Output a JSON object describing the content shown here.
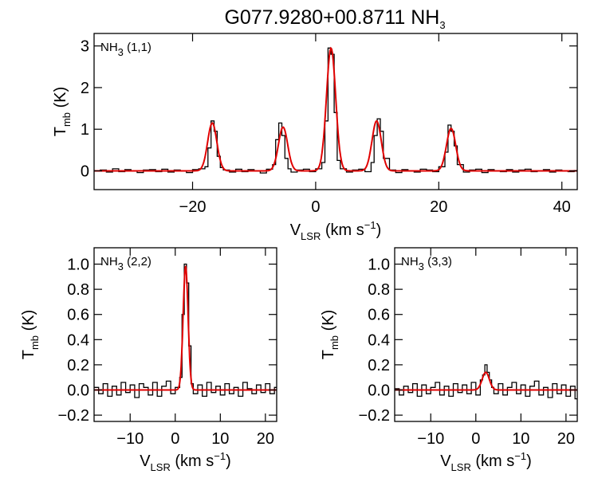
{
  "figure": {
    "title_main": "G077.9280+00.8711 NH",
    "title_sub": "3",
    "colors": {
      "data": "#000000",
      "fit": "#e00000",
      "frame": "#000000"
    }
  },
  "chart_data": [
    {
      "type": "line",
      "panel_label": {
        "main": "NH",
        "sub": "3",
        "rest": " (1,1)"
      },
      "xlabel": {
        "main": "V",
        "sub": "LSR",
        "rest": " (km s",
        "sup": "−1",
        "end": ")"
      },
      "ylabel": {
        "main": "T",
        "sub": "mb",
        "rest": " (K)"
      },
      "xlim": [
        -36,
        42.5
      ],
      "ylim": [
        -0.45,
        3.3
      ],
      "xticks": [
        -20,
        0,
        20,
        40
      ],
      "xticklabels": [
        "−20",
        "0",
        "20",
        "40"
      ],
      "yticks": [
        0,
        1,
        2,
        3
      ],
      "yticklabels": [
        "0",
        "1",
        "2",
        "3"
      ],
      "grid": false,
      "series": [
        {
          "style": "histogram",
          "color": "#000000",
          "x": [
            -36,
            -35,
            -34,
            -33,
            -32,
            -31,
            -30,
            -29,
            -28,
            -27,
            -26,
            -25,
            -24,
            -23,
            -22,
            -21,
            -20,
            -19,
            -18,
            -17.5,
            -17,
            -16.5,
            -16,
            -15.5,
            -15,
            -14,
            -13,
            -12,
            -11,
            -10,
            -9,
            -8,
            -7,
            -6.5,
            -6,
            -5.5,
            -5,
            -4.5,
            -4,
            -3,
            -2,
            -1,
            0,
            1,
            1.5,
            2,
            2.5,
            3,
            3.5,
            4,
            5,
            6,
            7,
            8,
            9,
            9.5,
            10,
            10.5,
            11,
            12,
            13,
            14,
            15,
            16,
            17,
            18,
            19,
            20,
            21,
            21.5,
            22,
            22.5,
            23,
            24,
            25,
            26,
            27,
            28,
            29,
            30,
            31,
            32,
            33,
            34,
            35,
            36,
            37,
            38,
            39,
            40,
            41,
            42
          ],
          "y": [
            0,
            0.02,
            -0.03,
            0.05,
            -0.02,
            0.03,
            0,
            -0.04,
            0.02,
            0.03,
            -0.02,
            0.04,
            -0.03,
            0.02,
            0,
            -0.04,
            0.03,
            0.05,
            0.1,
            0.55,
            1.2,
            0.95,
            0.35,
            0.08,
            0.02,
            -0.03,
            0.04,
            -0.02,
            0.03,
            0,
            -0.05,
            0.04,
            0.15,
            0.75,
            1.15,
            0.85,
            0.3,
            0.05,
            -0.03,
            0.02,
            0.04,
            -0.02,
            0.05,
            0.2,
            1.2,
            2.95,
            2.8,
            1.4,
            0.25,
            0.05,
            -0.03,
            0.02,
            0.04,
            -0.02,
            0.2,
            0.85,
            1.25,
            0.95,
            0.3,
            0.02,
            -0.04,
            0.03,
            0,
            -0.03,
            0.04,
            0.02,
            -0.02,
            0.1,
            0.45,
            1.1,
            0.95,
            0.6,
            0.15,
            -0.03,
            0.02,
            0.04,
            -0.04,
            0.03,
            0,
            -0.02,
            0.03,
            -0.03,
            0.02,
            0.04,
            -0.02,
            0,
            0.03,
            -0.03,
            0.02,
            0,
            -0.02,
            0.01
          ]
        },
        {
          "style": "line",
          "color": "#e00000",
          "name": "",
          "peaks": [
            [
              -16.8,
              1.15,
              0.75
            ],
            [
              -5.3,
              1.05,
              0.75
            ],
            [
              2.5,
              2.95,
              0.75
            ],
            [
              9.9,
              1.2,
              0.75
            ],
            [
              22.0,
              1.02,
              0.75
            ]
          ]
        }
      ]
    },
    {
      "type": "line",
      "panel_label": {
        "main": "NH",
        "sub": "3",
        "rest": " (2,2)"
      },
      "xlabel": {
        "main": "V",
        "sub": "LSR",
        "rest": " (km s",
        "sup": "−1",
        "end": ")"
      },
      "ylabel": {
        "main": "T",
        "sub": "mb",
        "rest": " (K)"
      },
      "xlim": [
        -18,
        22.5
      ],
      "ylim": [
        -0.25,
        1.13
      ],
      "xticks": [
        -10,
        0,
        10,
        20
      ],
      "xticklabels": [
        "−10",
        "0",
        "10",
        "20"
      ],
      "yticks": [
        -0.2,
        0,
        0.2,
        0.4,
        0.6,
        0.8,
        1.0
      ],
      "yticklabels": [
        "−0.2",
        "0.0",
        "0.2",
        "0.4",
        "0.6",
        "0.8",
        "1.0"
      ],
      "grid": false,
      "series": [
        {
          "style": "histogram",
          "color": "#000000",
          "x": [
            -18,
            -17,
            -16,
            -15,
            -14,
            -13,
            -12,
            -11,
            -10,
            -9,
            -8,
            -7,
            -6,
            -5,
            -4,
            -3,
            -2,
            -1,
            0,
            1,
            1.5,
            2,
            2.5,
            3,
            3.5,
            4,
            5,
            6,
            7,
            8,
            9,
            10,
            11,
            12,
            13,
            14,
            15,
            16,
            17,
            18,
            19,
            20,
            21,
            22
          ],
          "y": [
            0.02,
            -0.03,
            0.05,
            -0.05,
            0.03,
            -0.04,
            0.06,
            -0.02,
            0.04,
            -0.06,
            0.05,
            0.02,
            -0.04,
            0.06,
            -0.05,
            0.03,
            0.07,
            -0.03,
            0.02,
            0.1,
            0.6,
            1.0,
            0.85,
            0.35,
            0.05,
            -0.03,
            0.04,
            -0.05,
            0.06,
            -0.02,
            0.03,
            -0.04,
            0.05,
            -0.03,
            0.02,
            -0.05,
            0.06,
            0.01,
            -0.03,
            0.04,
            -0.02,
            0.05,
            -0.03,
            0.02
          ]
        },
        {
          "style": "line",
          "color": "#e00000",
          "name": "",
          "peaks": [
            [
              2.3,
              0.98,
              0.55
            ]
          ]
        }
      ]
    },
    {
      "type": "line",
      "panel_label": {
        "main": "NH",
        "sub": "3",
        "rest": " (3,3)"
      },
      "xlabel": {
        "main": "V",
        "sub": "LSR",
        "rest": " (km s",
        "sup": "−1",
        "end": ")"
      },
      "ylabel": {
        "main": "T",
        "sub": "mb",
        "rest": " (K)"
      },
      "xlim": [
        -18,
        22.5
      ],
      "ylim": [
        -0.25,
        1.13
      ],
      "xticks": [
        -10,
        0,
        10,
        20
      ],
      "xticklabels": [
        "−10",
        "0",
        "10",
        "20"
      ],
      "yticks": [
        -0.2,
        0,
        0.2,
        0.4,
        0.6,
        0.8,
        1.0
      ],
      "yticklabels": [
        "−0.2",
        "0.0",
        "0.2",
        "0.4",
        "0.6",
        "0.8",
        "1.0"
      ],
      "grid": false,
      "series": [
        {
          "style": "histogram",
          "color": "#000000",
          "x": [
            -18,
            -17,
            -16,
            -15,
            -14,
            -13,
            -12,
            -11,
            -10,
            -9,
            -8,
            -7,
            -6,
            -5,
            -4,
            -3,
            -2,
            -1,
            0,
            1,
            1.5,
            2,
            2.5,
            3,
            3.5,
            4,
            5,
            6,
            7,
            8,
            9,
            10,
            11,
            12,
            13,
            14,
            15,
            16,
            17,
            18,
            19,
            20,
            21,
            22
          ],
          "y": [
            0.01,
            -0.04,
            0.03,
            -0.02,
            0.05,
            -0.05,
            0.04,
            -0.03,
            0.02,
            0.06,
            -0.04,
            0.03,
            -0.05,
            0.05,
            -0.02,
            0.04,
            -0.03,
            0.06,
            -0.04,
            0.08,
            0.12,
            0.2,
            0.14,
            0.08,
            0.02,
            -0.03,
            0.05,
            -0.04,
            0.02,
            0.06,
            -0.03,
            0.04,
            -0.05,
            0.03,
            0.07,
            -0.04,
            0.02,
            -0.06,
            0.05,
            -0.03,
            0.04,
            -0.05,
            0.03,
            -0.07
          ]
        },
        {
          "style": "line",
          "color": "#e00000",
          "name": "",
          "peaks": [
            [
              2.2,
              0.14,
              0.8
            ]
          ]
        }
      ]
    }
  ]
}
